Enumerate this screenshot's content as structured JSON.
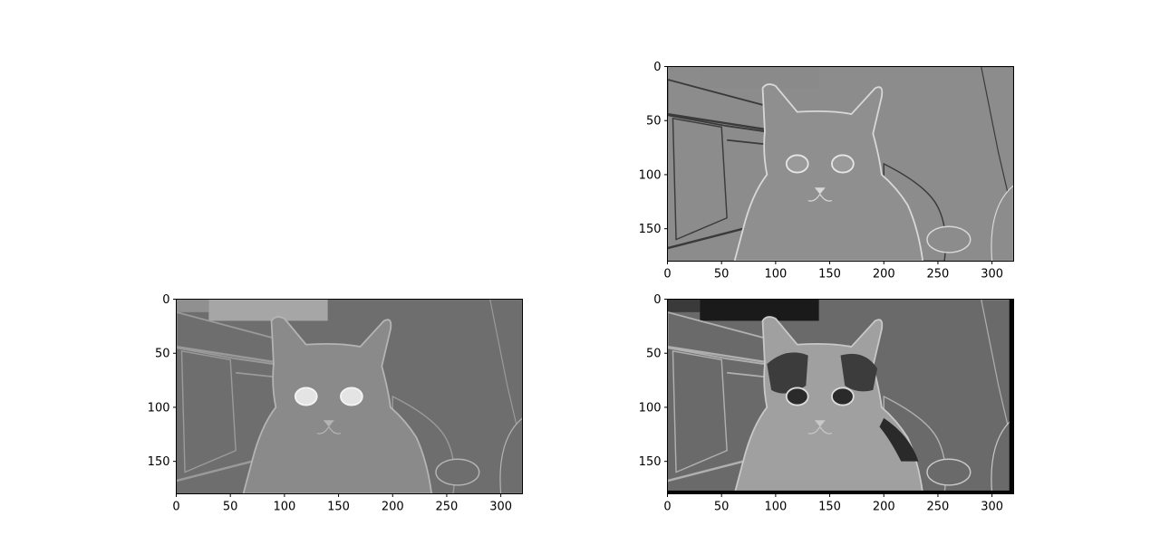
{
  "figure": {
    "layout": "2x2 grid, top-left panel empty",
    "colormap": "grayscale"
  },
  "chart_data": [
    {
      "type": "image",
      "panel": "top-right",
      "content": "edge-filtered (embossed) grayscale photo of a cat",
      "title": "",
      "xlabel": "",
      "ylabel": "",
      "xlim": [
        0,
        320
      ],
      "ylim": [
        180,
        0
      ],
      "xticks": [
        0,
        50,
        100,
        150,
        200,
        250,
        300
      ],
      "yticks": [
        0,
        50,
        100,
        150
      ],
      "xtick_labels": [
        "0",
        "50",
        "100",
        "150",
        "200",
        "250",
        "300"
      ],
      "ytick_labels": [
        "0",
        "50",
        "100",
        "150"
      ]
    },
    {
      "type": "image",
      "panel": "bottom-left",
      "content": "low-contrast filtered grayscale photo of a cat with bright eyes",
      "title": "",
      "xlabel": "",
      "ylabel": "",
      "xlim": [
        0,
        320
      ],
      "ylim": [
        180,
        0
      ],
      "xticks": [
        0,
        50,
        100,
        150,
        200,
        250,
        300
      ],
      "yticks": [
        0,
        50,
        100,
        150
      ],
      "xtick_labels": [
        "0",
        "50",
        "100",
        "150",
        "200",
        "250",
        "300"
      ],
      "ytick_labels": [
        "0",
        "50",
        "100",
        "150"
      ]
    },
    {
      "type": "image",
      "panel": "bottom-right",
      "content": "sharpened grayscale photo of a cat with dark border on right and bottom",
      "title": "",
      "xlabel": "",
      "ylabel": "",
      "xlim": [
        0,
        320
      ],
      "ylim": [
        180,
        0
      ],
      "xticks": [
        0,
        50,
        100,
        150,
        200,
        250,
        300
      ],
      "yticks": [
        0,
        50,
        100,
        150
      ],
      "xtick_labels": [
        "0",
        "50",
        "100",
        "150",
        "200",
        "250",
        "300"
      ],
      "ytick_labels": [
        "0",
        "50",
        "100",
        "150"
      ]
    }
  ]
}
